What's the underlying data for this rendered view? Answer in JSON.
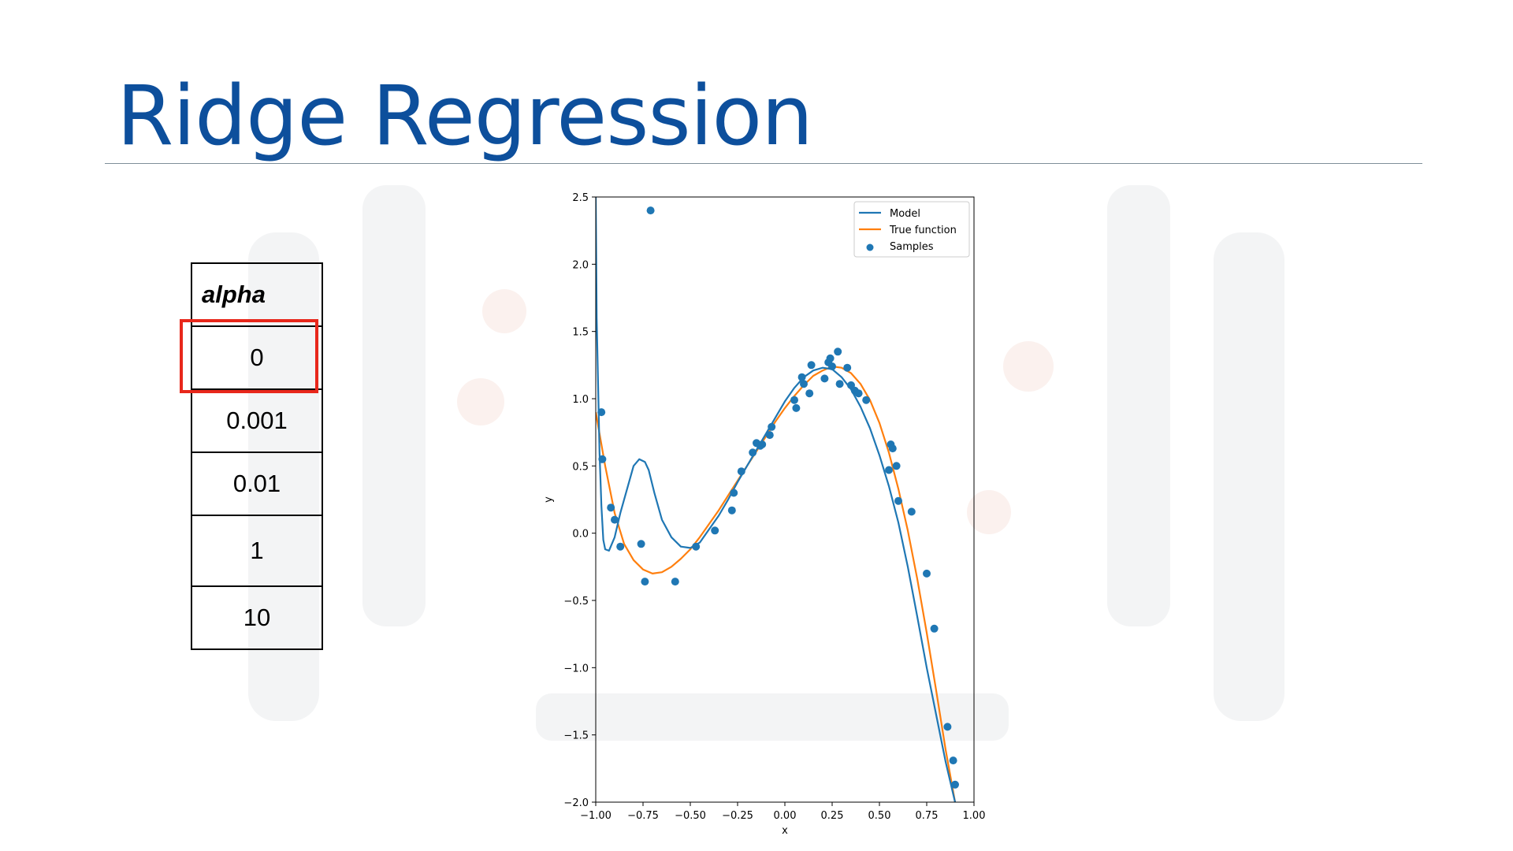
{
  "slide": {
    "title": "Ridge Regression"
  },
  "table": {
    "header": "alpha",
    "rows": [
      "0",
      "0.001",
      "0.01",
      "1",
      "10"
    ],
    "highlighted_row": 0
  },
  "colors": {
    "title": "#0d4f9c",
    "model": "#1f77b4",
    "true_function": "#ff7f0e",
    "samples": "#1f77b4",
    "highlight": "#e8271b"
  },
  "chart_data": {
    "type": "line",
    "xlabel": "x",
    "ylabel": "y",
    "xlim": [
      -1.0,
      1.0
    ],
    "ylim": [
      -2.0,
      2.5
    ],
    "x_ticks": [
      "-1.00",
      "-0.75",
      "-0.50",
      "-0.25",
      "0.00",
      "0.25",
      "0.50",
      "0.75",
      "1.00"
    ],
    "y_ticks": [
      "-2.0",
      "-1.5",
      "-1.0",
      "-0.5",
      "0.0",
      "0.5",
      "1.0",
      "1.5",
      "2.0",
      "2.5"
    ],
    "grid": false,
    "legend": {
      "placement": "top-right",
      "entries": [
        "Model",
        "True function",
        "Samples"
      ]
    },
    "series": [
      {
        "name": "Model",
        "x": [
          -1.0,
          -0.995,
          -0.98,
          -0.97,
          -0.96,
          -0.95,
          -0.93,
          -0.9,
          -0.87,
          -0.83,
          -0.8,
          -0.77,
          -0.74,
          -0.72,
          -0.69,
          -0.65,
          -0.6,
          -0.55,
          -0.5,
          -0.45,
          -0.4,
          -0.35,
          -0.3,
          -0.25,
          -0.2,
          -0.15,
          -0.1,
          -0.05,
          0.0,
          0.05,
          0.1,
          0.15,
          0.2,
          0.25,
          0.3,
          0.35,
          0.4,
          0.45,
          0.5,
          0.55,
          0.6,
          0.65,
          0.7,
          0.75,
          0.8,
          0.85,
          0.9
        ],
        "y": [
          2.5,
          1.6,
          0.6,
          0.2,
          -0.05,
          -0.12,
          -0.13,
          -0.03,
          0.15,
          0.35,
          0.5,
          0.55,
          0.53,
          0.47,
          0.3,
          0.1,
          -0.03,
          -0.1,
          -0.11,
          -0.07,
          0.03,
          0.13,
          0.25,
          0.38,
          0.5,
          0.62,
          0.74,
          0.86,
          0.98,
          1.08,
          1.16,
          1.21,
          1.23,
          1.22,
          1.16,
          1.07,
          0.94,
          0.78,
          0.58,
          0.35,
          0.08,
          -0.25,
          -0.62,
          -1.0,
          -1.35,
          -1.7,
          -2.0
        ]
      },
      {
        "name": "True function",
        "x": [
          -1.0,
          -0.95,
          -0.9,
          -0.85,
          -0.8,
          -0.75,
          -0.7,
          -0.65,
          -0.6,
          -0.55,
          -0.5,
          -0.45,
          -0.4,
          -0.35,
          -0.3,
          -0.25,
          -0.2,
          -0.15,
          -0.1,
          -0.05,
          0.0,
          0.05,
          0.1,
          0.15,
          0.2,
          0.25,
          0.3,
          0.35,
          0.4,
          0.45,
          0.5,
          0.55,
          0.6,
          0.65,
          0.7,
          0.75,
          0.8,
          0.85,
          0.9,
          0.92
        ],
        "y": [
          0.9,
          0.5,
          0.15,
          -0.08,
          -0.2,
          -0.27,
          -0.3,
          -0.29,
          -0.25,
          -0.19,
          -0.12,
          -0.03,
          0.07,
          0.17,
          0.28,
          0.39,
          0.5,
          0.61,
          0.72,
          0.83,
          0.93,
          1.02,
          1.1,
          1.17,
          1.21,
          1.24,
          1.23,
          1.19,
          1.11,
          0.99,
          0.82,
          0.6,
          0.33,
          0.02,
          -0.34,
          -0.74,
          -1.17,
          -1.61,
          -2.0,
          -2.05
        ]
      },
      {
        "name": "Samples",
        "x": [
          -0.97,
          -0.965,
          -0.92,
          -0.9,
          -0.87,
          -0.76,
          -0.74,
          -0.71,
          -0.58,
          -0.47,
          -0.37,
          -0.28,
          -0.27,
          -0.23,
          -0.17,
          -0.15,
          -0.13,
          -0.12,
          -0.08,
          -0.07,
          0.05,
          0.06,
          0.09,
          0.1,
          0.13,
          0.14,
          0.21,
          0.23,
          0.24,
          0.25,
          0.28,
          0.29,
          0.33,
          0.35,
          0.37,
          0.39,
          0.43,
          0.55,
          0.56,
          0.57,
          0.59,
          0.6,
          0.67,
          0.75,
          0.79,
          0.86,
          0.89,
          0.9
        ],
        "y": [
          0.9,
          0.55,
          0.19,
          0.1,
          -0.1,
          -0.08,
          -0.36,
          2.4,
          -0.36,
          -0.1,
          0.02,
          0.17,
          0.3,
          0.46,
          0.6,
          0.67,
          0.65,
          0.66,
          0.73,
          0.79,
          0.99,
          0.93,
          1.16,
          1.11,
          1.04,
          1.25,
          1.15,
          1.27,
          1.3,
          1.24,
          1.35,
          1.11,
          1.23,
          1.1,
          1.06,
          1.04,
          0.99,
          0.47,
          0.66,
          0.63,
          0.5,
          0.24,
          0.16,
          -0.3,
          -0.71,
          -1.44,
          -1.69,
          -1.87
        ]
      }
    ]
  }
}
